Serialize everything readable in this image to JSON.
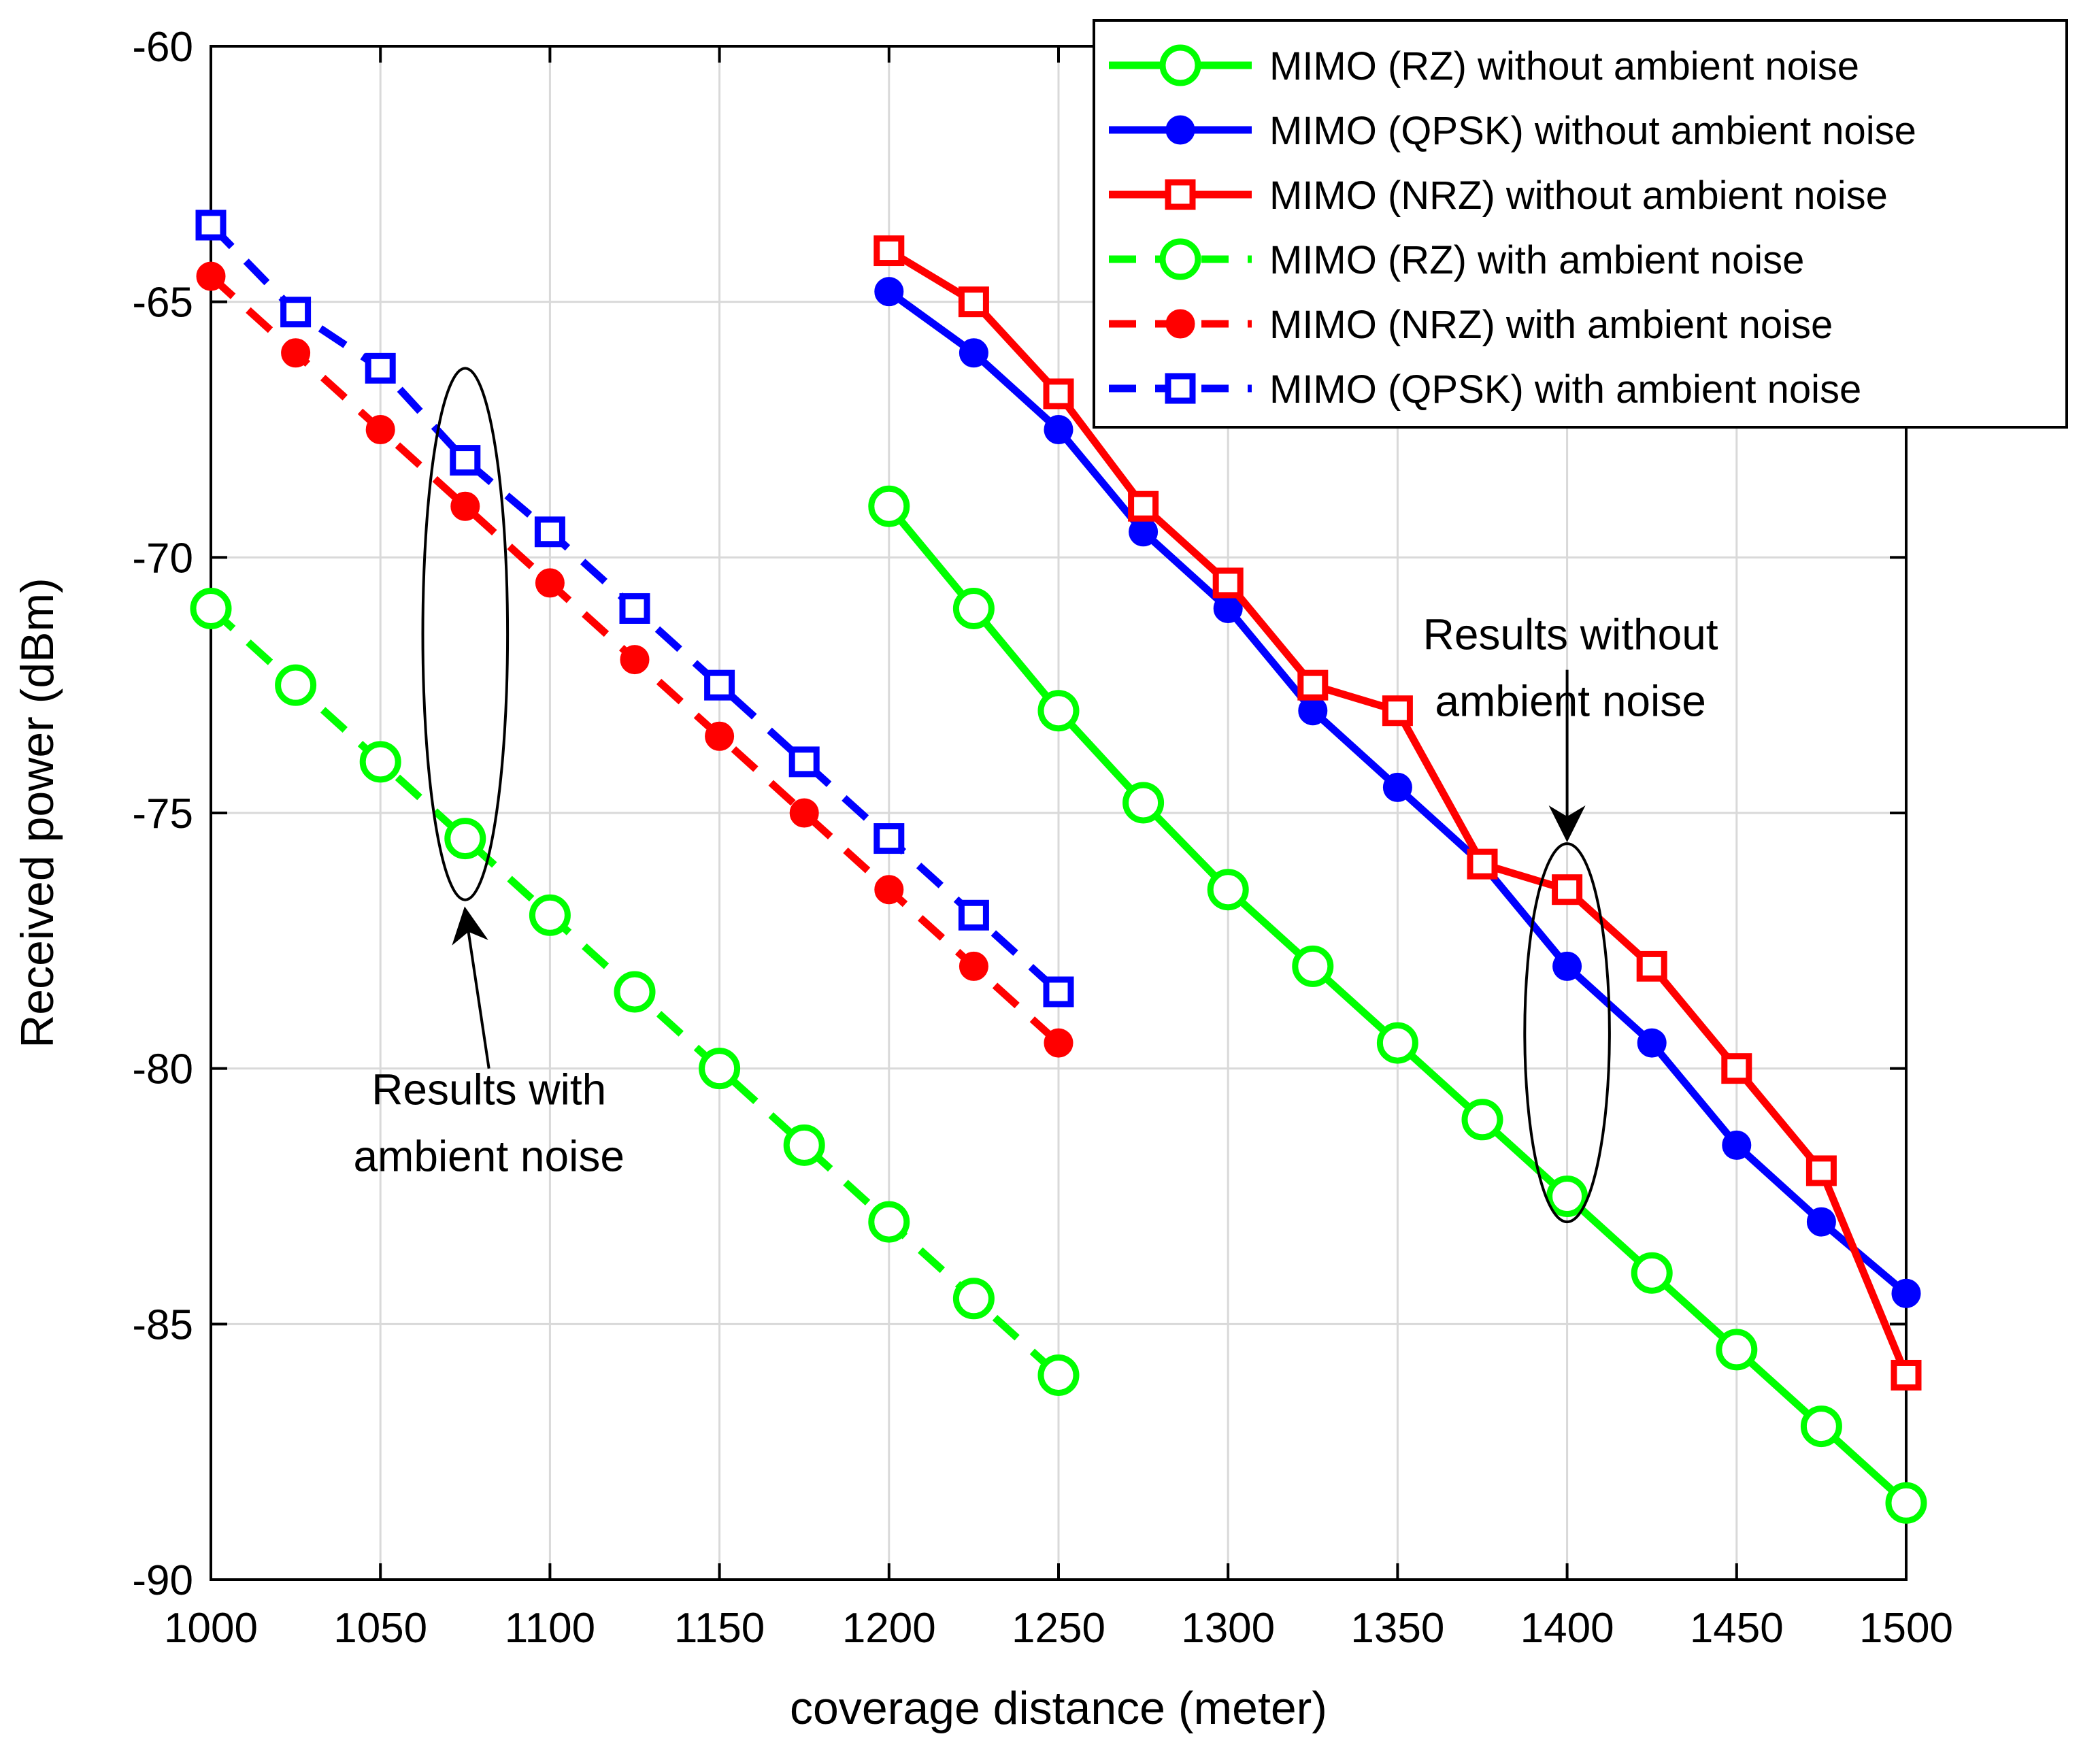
{
  "chart_data": {
    "type": "line",
    "title": "",
    "xlabel": "coverage distance (meter)",
    "ylabel": "Received power (dBm)",
    "xlim": [
      1000,
      1500
    ],
    "ylim": [
      -90,
      -60
    ],
    "xticks": [
      1000,
      1050,
      1100,
      1150,
      1200,
      1250,
      1300,
      1350,
      1400,
      1450,
      1500
    ],
    "yticks": [
      -60,
      -65,
      -70,
      -75,
      -80,
      -85,
      -90
    ],
    "xtick_labels": [
      "1000",
      "1050",
      "1100",
      "1150",
      "1200",
      "1250",
      "1300",
      "1350",
      "1400",
      "1450",
      "1500"
    ],
    "ytick_labels": [
      "-60",
      "-65",
      "-70",
      "-75",
      "-80",
      "-85",
      "-90"
    ],
    "grid": true,
    "legend_position": "top-right",
    "series": [
      {
        "name": "MIMO (RZ) without ambient noise",
        "color": "#00ff00",
        "line": "solid",
        "marker": "circle-open",
        "x": [
          1200,
          1225,
          1250,
          1275,
          1300,
          1325,
          1350,
          1375,
          1400,
          1425,
          1450,
          1475,
          1500
        ],
        "y": [
          -69,
          -71,
          -73,
          -74.8,
          -76.5,
          -78,
          -79.5,
          -81,
          -82.5,
          -84,
          -85.5,
          -87,
          -88.5
        ]
      },
      {
        "name": "MIMO (QPSK) without ambient noise",
        "color": "#0000ff",
        "line": "solid",
        "marker": "circle-filled",
        "x": [
          1200,
          1225,
          1250,
          1275,
          1300,
          1325,
          1350,
          1375,
          1400,
          1425,
          1450,
          1475,
          1500
        ],
        "y": [
          -64.8,
          -66,
          -67.5,
          -69.5,
          -71,
          -73,
          -74.5,
          -76,
          -78,
          -79.5,
          -81.5,
          -83,
          -84.4
        ]
      },
      {
        "name": "MIMO (NRZ) without ambient noise",
        "color": "#ff0000",
        "line": "solid",
        "marker": "square-open",
        "x": [
          1200,
          1225,
          1250,
          1275,
          1300,
          1325,
          1350,
          1375,
          1400,
          1425,
          1450,
          1475,
          1500
        ],
        "y": [
          -64,
          -65,
          -66.8,
          -69,
          -70.5,
          -72.5,
          -73,
          -76,
          -76.5,
          -78,
          -80,
          -82,
          -86
        ]
      },
      {
        "name": "MIMO (RZ) with ambient noise",
        "color": "#00ff00",
        "line": "dashed",
        "marker": "circle-open",
        "x": [
          1000,
          1025,
          1050,
          1075,
          1100,
          1125,
          1150,
          1175,
          1200,
          1225,
          1250
        ],
        "y": [
          -71,
          -72.5,
          -74,
          -75.5,
          -77,
          -78.5,
          -80,
          -81.5,
          -83,
          -84.5,
          -86
        ]
      },
      {
        "name": "MIMO (NRZ) with ambient noise",
        "color": "#ff0000",
        "line": "dashed",
        "marker": "circle-filled",
        "x": [
          1000,
          1025,
          1050,
          1075,
          1100,
          1125,
          1150,
          1175,
          1200,
          1225,
          1250
        ],
        "y": [
          -64.5,
          -66,
          -67.5,
          -69,
          -70.5,
          -72,
          -73.5,
          -75,
          -76.5,
          -78,
          -79.5
        ]
      },
      {
        "name": "MIMO (QPSK) with ambient noise",
        "color": "#0000ff",
        "line": "dashed",
        "marker": "square-open",
        "x": [
          1000,
          1025,
          1050,
          1075,
          1100,
          1125,
          1150,
          1175,
          1200,
          1225,
          1250
        ],
        "y": [
          -63.5,
          -65.2,
          -66.3,
          -68.1,
          -69.5,
          -71,
          -72.5,
          -74,
          -75.5,
          -77,
          -78.5
        ]
      }
    ],
    "annotations": [
      {
        "name": "annotation-with-noise",
        "lines": [
          "Results with",
          "ambient noise"
        ],
        "ellipse_center": [
          1075,
          -71.5
        ],
        "ellipse_radius": [
          12.5,
          5.2
        ],
        "arrow_from": [
          1082,
          -80
        ],
        "arrow_to": [
          1075,
          -76.9
        ],
        "text_anchor": [
          1082,
          -80.7
        ]
      },
      {
        "name": "annotation-without-noise",
        "lines": [
          "Results without",
          "ambient noise"
        ],
        "ellipse_center": [
          1400,
          -79.3
        ],
        "ellipse_radius": [
          12.5,
          3.7
        ],
        "arrow_from": [
          1400,
          -72.2
        ],
        "arrow_to": [
          1400,
          -75.5
        ],
        "text_anchor": [
          1401,
          -71.8
        ]
      }
    ]
  }
}
